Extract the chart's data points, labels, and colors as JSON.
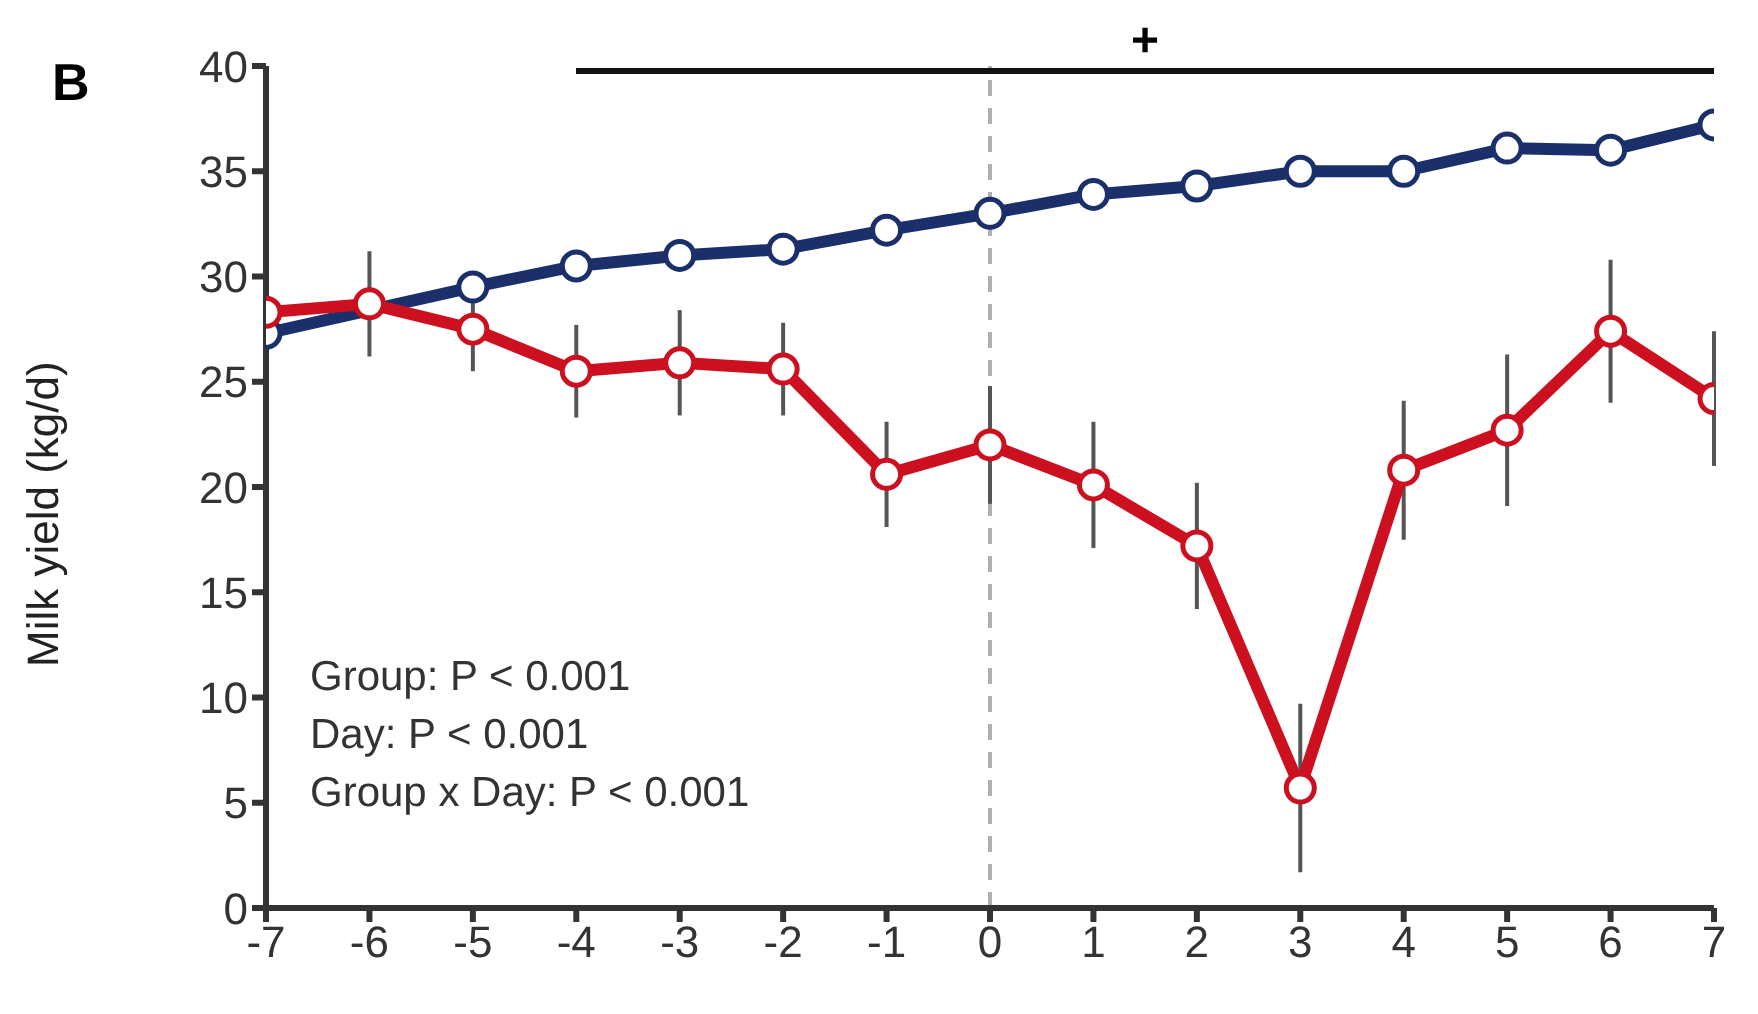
{
  "chart_data": {
    "type": "line",
    "ylabel": "Milk yield (kg/d)",
    "x": [
      -7,
      -6,
      -5,
      -4,
      -3,
      -2,
      -1,
      0,
      1,
      2,
      3,
      4,
      5,
      6,
      7
    ],
    "series": [
      {
        "color": "#1b2f6b",
        "values": [
          27.3,
          null,
          29.5,
          30.5,
          31.0,
          31.3,
          32.2,
          33.0,
          33.9,
          34.3,
          35.0,
          35.0,
          36.1,
          36.0,
          37.2
        ]
      },
      {
        "color": "#cc1020",
        "values": [
          28.3,
          28.7,
          27.5,
          25.5,
          25.9,
          25.6,
          20.6,
          22.0,
          20.1,
          17.2,
          5.7,
          20.8,
          22.7,
          27.4,
          24.2
        ],
        "errors": [
          2,
          2.5,
          2,
          2.2,
          2.5,
          2.2,
          2.5,
          2.8,
          3,
          3,
          4,
          3.3,
          3.6,
          3.4,
          3.2
        ]
      }
    ],
    "xlim": [
      -7,
      7
    ],
    "xticks": [
      -7,
      -6,
      -5,
      -4,
      -3,
      -2,
      -1,
      0,
      1,
      2,
      3,
      4,
      5,
      6,
      7
    ],
    "ylim": [
      0,
      40
    ],
    "yticks": [
      0,
      5,
      10,
      15,
      20,
      25,
      30,
      35,
      40
    ],
    "ref_lines": [
      {
        "axis": "x",
        "value": 0,
        "color": "#b0b0b0",
        "line_style": "dashed"
      }
    ],
    "marker": "circle",
    "line_style": "solid",
    "grid": false,
    "legend": false,
    "annotations": [
      "B",
      "+",
      "Group: P < 0.001",
      "Day: P < 0.001",
      "Group x Day: P < 0.001"
    ]
  }
}
